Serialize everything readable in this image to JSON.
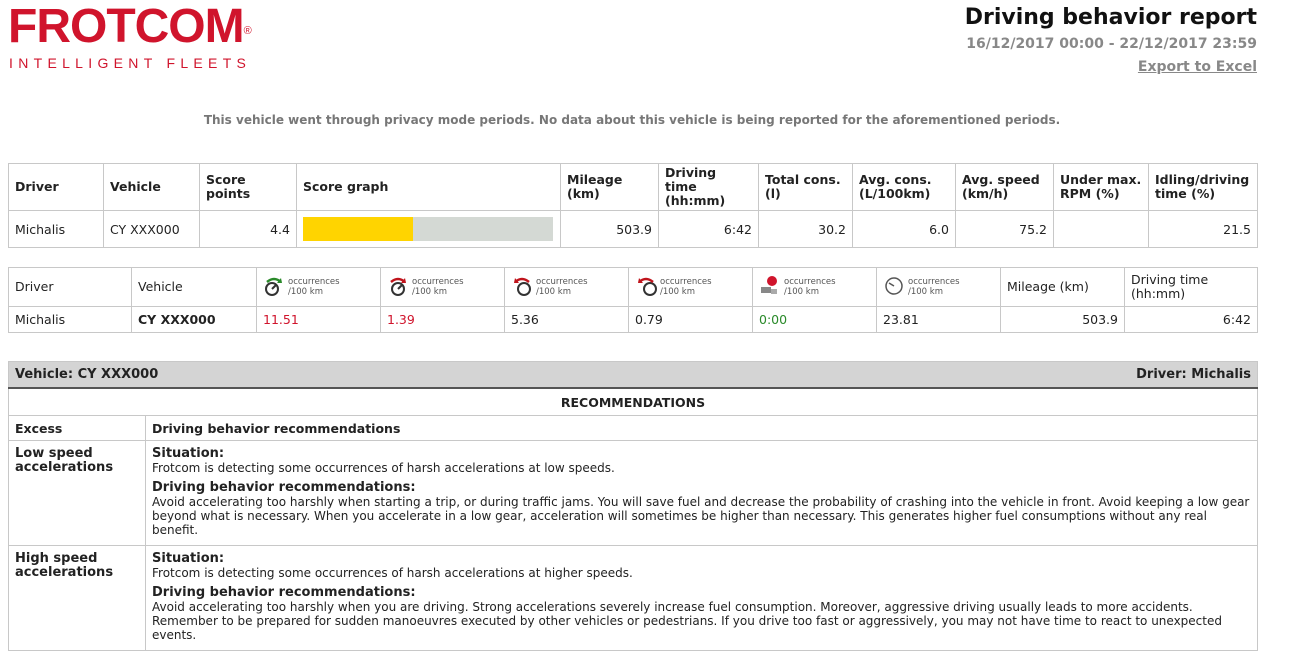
{
  "header": {
    "logo": "FROTCOM",
    "logo_mark": "®",
    "tagline": "INTELLIGENT FLEETS",
    "title": "Driving behavior report",
    "period": "16/12/2017 00:00 - 22/12/2017 23:59",
    "export": "Export to Excel"
  },
  "notice": "This vehicle went through privacy mode periods. No data about this vehicle is being reported for the aforementioned periods.",
  "summary": {
    "columns": [
      "Driver",
      "Vehicle",
      "Score points",
      "Score graph",
      "Mileage (km)",
      "Driving time (hh:mm)",
      "Total cons. (l)",
      "Avg. cons. (L/100km)",
      "Avg. speed (km/h)",
      "Under max. RPM (%)",
      "Idling/driving time (%)"
    ],
    "rows": [
      [
        "Michalis",
        "CY XXX000",
        "4.4",
        null,
        "503.9",
        "6:42",
        "30.2",
        "6.0",
        "75.2",
        null,
        "21.5"
      ]
    ]
  },
  "events": {
    "columns": [
      "Driver",
      "Vehicle",
      [
        "occurrences",
        "/100 km"
      ],
      [
        "occurrences",
        "/100 km"
      ],
      [
        "occurrences",
        "/100 km"
      ],
      [
        "occurrences",
        "/100 km"
      ],
      [
        "occurrences",
        "/100 km"
      ],
      [
        "occurrences",
        "/100 km"
      ],
      "Mileage (km)",
      "Driving time (hh:mm)"
    ],
    "rows": [
      [
        "Michalis",
        "CY XXX000",
        "11.51",
        "1.39",
        "5.36",
        "0.79",
        "0:00",
        "23.81",
        "503.9",
        "6:42"
      ]
    ]
  },
  "recommendations": {
    "vehicle": "Vehicle: CY XXX000",
    "driver": "Driver: Michalis",
    "heading": "RECOMMENDATIONS",
    "columns": [
      "Excess",
      "Driving behavior recommendations"
    ],
    "rows": [
      {
        "excess": "Low speed accelerations",
        "situation_label": "Situation:",
        "situation": "Frotcom is detecting some occurrences of harsh accelerations at low speeds.",
        "advice_label": "Driving behavior recommendations:",
        "advice": "Avoid accelerating too harshly when starting a trip, or during traffic jams. You will save fuel and decrease the probability of crashing into the vehicle in front. Avoid keeping a low gear beyond what is necessary. When you accelerate in a low gear, acceleration will sometimes be higher than necessary. This generates higher fuel consumptions without any real benefit."
      },
      {
        "excess": "High speed accelerations",
        "situation_label": "Situation:",
        "situation": "Frotcom is detecting some occurrences of harsh accelerations at higher speeds.",
        "advice_label": "Driving behavior recommendations:",
        "advice": "Avoid accelerating too harshly when you are driving. Strong accelerations severely increase fuel consumption. Moreover, aggressive driving usually leads to more accidents. Remember to be prepared for sudden manoeuvres executed by other vehicles or pedestrians. If you drive too fast or aggressively, you may not have time to react to unexpected events."
      }
    ]
  }
}
